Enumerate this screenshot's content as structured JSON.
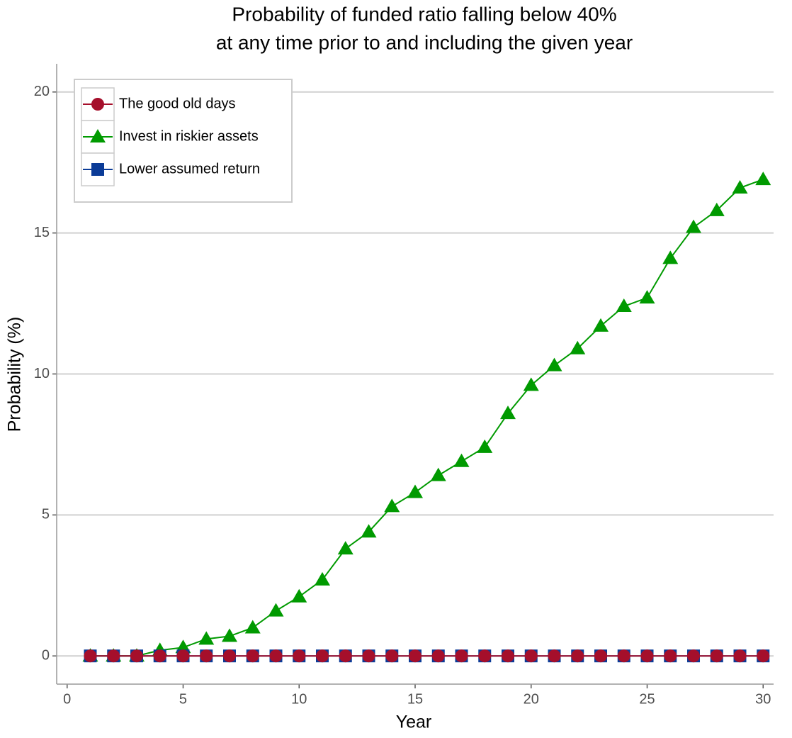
{
  "chart_data": {
    "type": "line",
    "title": [
      "Probability of funded ratio falling below 40%",
      "at any time prior to and including the given year"
    ],
    "x_label": "Year",
    "y_label": "Probability (%)",
    "x": [
      1,
      2,
      3,
      4,
      5,
      6,
      7,
      8,
      9,
      10,
      11,
      12,
      13,
      14,
      15,
      16,
      17,
      18,
      19,
      20,
      21,
      22,
      23,
      24,
      25,
      26,
      27,
      28,
      29,
      30
    ],
    "series": [
      {
        "name": "The good old days",
        "color": "#a50f2b",
        "marker": "circle",
        "values": [
          0,
          0,
          0,
          0,
          0,
          0,
          0,
          0,
          0,
          0,
          0,
          0,
          0,
          0,
          0,
          0,
          0,
          0,
          0,
          0,
          0,
          0,
          0,
          0,
          0,
          0,
          0,
          0,
          0,
          0
        ]
      },
      {
        "name": "Invest in riskier assets",
        "color": "#009a00",
        "marker": "triangle",
        "values": [
          0,
          0,
          0,
          0.2,
          0.3,
          0.6,
          0.7,
          1.0,
          1.6,
          2.1,
          2.7,
          3.8,
          4.4,
          5.3,
          5.8,
          6.4,
          6.9,
          7.4,
          8.6,
          9.6,
          10.3,
          10.9,
          11.7,
          12.4,
          12.7,
          14.1,
          15.2,
          15.8,
          16.6,
          16.9
        ]
      },
      {
        "name": "Lower assumed return",
        "color": "#0b3b97",
        "marker": "square",
        "values": [
          0,
          0,
          0,
          0,
          0,
          0,
          0,
          0,
          0,
          0,
          0,
          0,
          0,
          0,
          0,
          0,
          0,
          0,
          0,
          0,
          0,
          0,
          0,
          0,
          0,
          0,
          0,
          0,
          0,
          0
        ]
      }
    ],
    "xlim": [
      -0.45,
      30.45
    ],
    "ylim": [
      -1,
      21
    ],
    "xticks": [
      0,
      5,
      10,
      15,
      20,
      25,
      30
    ],
    "yticks": [
      0,
      5,
      10,
      15,
      20
    ],
    "grid": true,
    "legend_position": "top-left"
  }
}
